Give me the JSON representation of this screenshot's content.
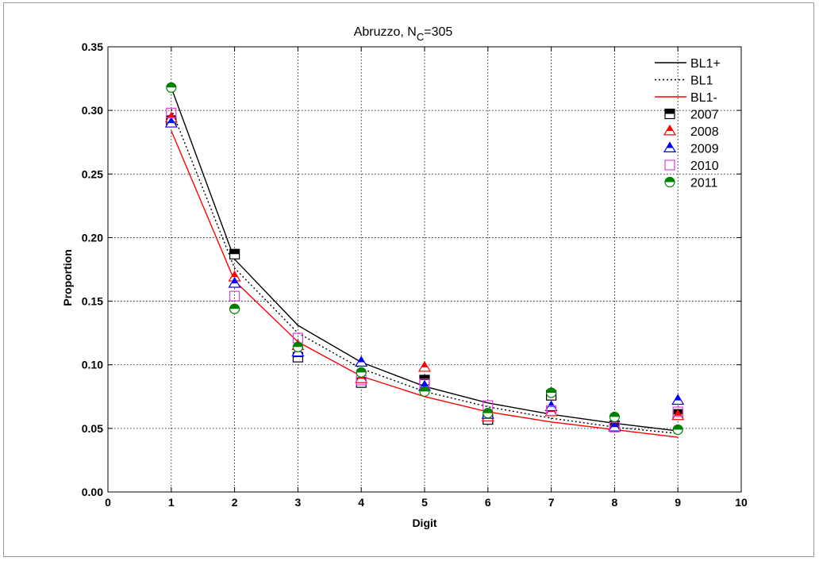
{
  "chart_data": {
    "type": "line",
    "title_main": "Abruzzo, N",
    "title_sub": "C",
    "title_tail": "=305",
    "xlabel": "Digit",
    "ylabel": "Proportion",
    "xlim": [
      0,
      10
    ],
    "ylim": [
      0,
      0.35
    ],
    "xticks": [
      "0",
      "1",
      "2",
      "3",
      "4",
      "5",
      "6",
      "7",
      "8",
      "9",
      "10"
    ],
    "yticks": [
      "0.00",
      "0.05",
      "0.10",
      "0.15",
      "0.20",
      "0.25",
      "0.30",
      "0.35"
    ],
    "grid": true,
    "legend_position": "top-right",
    "x": [
      1,
      2,
      3,
      4,
      5,
      6,
      7,
      8,
      9
    ],
    "lines": [
      {
        "name": "BL1+",
        "color": "#000000",
        "style": "solid",
        "values": [
          0.318,
          0.183,
          0.131,
          0.102,
          0.083,
          0.07,
          0.061,
          0.054,
          0.048
        ]
      },
      {
        "name": "BL1",
        "color": "#000000",
        "style": "dotted",
        "values": [
          0.301,
          0.176,
          0.125,
          0.097,
          0.079,
          0.067,
          0.058,
          0.051,
          0.046
        ]
      },
      {
        "name": "BL1-",
        "color": "#ff0000",
        "style": "solid",
        "values": [
          0.284,
          0.166,
          0.118,
          0.091,
          0.075,
          0.063,
          0.055,
          0.049,
          0.043
        ]
      }
    ],
    "markers": [
      {
        "name": "2007",
        "shape": "square-half",
        "color": "#000000",
        "values": [
          0.292,
          0.187,
          0.106,
          0.086,
          0.088,
          0.057,
          0.076,
          0.052,
          0.061
        ]
      },
      {
        "name": "2008",
        "shape": "triangle-half",
        "color": "#ff0000",
        "values": [
          0.294,
          0.169,
          0.115,
          0.089,
          0.098,
          0.059,
          0.063,
          0.052,
          0.06
        ]
      },
      {
        "name": "2009",
        "shape": "triangle-half",
        "color": "#0000ff",
        "values": [
          0.29,
          0.164,
          0.11,
          0.102,
          0.083,
          0.061,
          0.067,
          0.051,
          0.072
        ]
      },
      {
        "name": "2010",
        "shape": "square-open",
        "color": "#e040e0",
        "values": [
          0.298,
          0.154,
          0.121,
          0.088,
          0.085,
          0.068,
          0.064,
          0.051,
          0.063
        ]
      },
      {
        "name": "2011",
        "shape": "circle-half",
        "color": "#008000",
        "values": [
          0.318,
          0.144,
          0.114,
          0.094,
          0.079,
          0.062,
          0.078,
          0.059,
          0.049
        ]
      }
    ]
  }
}
